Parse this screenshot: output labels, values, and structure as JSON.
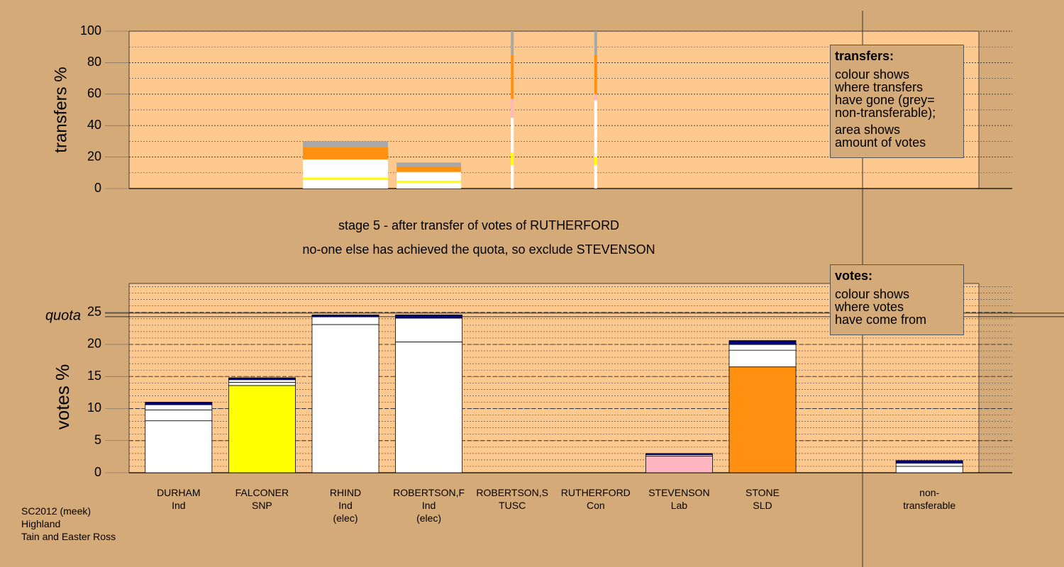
{
  "title": "stage 5 - after transfer of votes of RUTHERFORD",
  "subtitle": "no-one else has achieved the quota, so exclude STEVENSON",
  "footer": "SC2012 (meek)\nHighland\nTain and Easter Ross",
  "chart_data": [
    {
      "type": "bar",
      "stacked": true,
      "ylabel": "transfers %",
      "ylim": [
        0,
        100
      ],
      "yticks": [
        0,
        20,
        40,
        60,
        80,
        100
      ],
      "minor_grid_step": 10,
      "note": {
        "title": "transfers:",
        "lines": [
          "colour shows\nwhere transfers\nhave gone (grey=\nnon-transferable);",
          "area shows\namount of votes"
        ]
      },
      "vote_amounts": [
        0,
        0,
        36,
        15,
        4,
        4,
        0,
        0,
        null,
        0
      ],
      "series": [
        {
          "color": "#ffffff",
          "values": [
            0,
            0,
            5.5,
            3.5,
            15,
            15,
            0,
            0,
            null,
            0
          ]
        },
        {
          "color": "#ffff00",
          "values": [
            0,
            0,
            1.5,
            1.5,
            8,
            5,
            0,
            0,
            null,
            0
          ]
        },
        {
          "color": "#ffffff",
          "values": [
            0,
            0,
            11.5,
            5.5,
            22,
            36,
            0,
            0,
            null,
            0
          ]
        },
        {
          "color": "#ffb6c1",
          "values": [
            0,
            0,
            0,
            0,
            12,
            4,
            0,
            0,
            null,
            0
          ]
        },
        {
          "color": "#ff9010",
          "values": [
            0,
            0,
            8,
            3.5,
            28,
            25,
            0,
            0,
            null,
            0
          ]
        },
        {
          "color": "#a8a8a8",
          "values": [
            0,
            0,
            3.5,
            2.5,
            15,
            15,
            0,
            0,
            null,
            0
          ]
        }
      ]
    },
    {
      "type": "bar",
      "stacked": true,
      "ylabel": "votes %",
      "ylim": [
        0,
        29.5
      ],
      "yticks": [
        0,
        5,
        10,
        15,
        20,
        25
      ],
      "minor_grid_step": 1,
      "quota": {
        "value": 24.6,
        "label": "quota"
      },
      "note": {
        "title": "votes:",
        "lines": [
          "colour shows\nwhere votes\nhave come from"
        ]
      },
      "categories": [
        "DURHAM\nInd",
        "FALCONER\nSNP",
        "RHIND\nInd\n(elec)",
        "ROBERTSON,F\nInd\n(elec)",
        "ROBERTSON,S\nTUSC",
        "RUTHERFORD\nCon",
        "STEVENSON\nLab",
        "STONE\nSLD",
        null,
        "non-\ntransferable"
      ],
      "series": [
        {
          "colors": [
            "#ffffff",
            "#ffff00",
            "#ffffff",
            "#ffffff",
            "#ffffff",
            "#4040ff",
            "#ffb6c1",
            "#ff9010",
            null,
            "#ffffff"
          ],
          "values": [
            8.1,
            13.6,
            23.1,
            20.4,
            0,
            0,
            2.6,
            16.5,
            null,
            1.0
          ]
        },
        {
          "color": "#ffffff",
          "values": [
            1.7,
            0.5,
            1.2,
            3.7,
            0,
            0,
            0.2,
            2.6,
            null,
            0.5
          ]
        },
        {
          "color": "#ffffff",
          "values": [
            0.8,
            0.4,
            0,
            0,
            0,
            0,
            0,
            0.9,
            null,
            0
          ]
        },
        {
          "color": "#000080",
          "values": [
            0.4,
            0.3,
            0.3,
            0.5,
            0,
            0,
            0.2,
            0.6,
            null,
            0.4
          ]
        }
      ]
    }
  ]
}
